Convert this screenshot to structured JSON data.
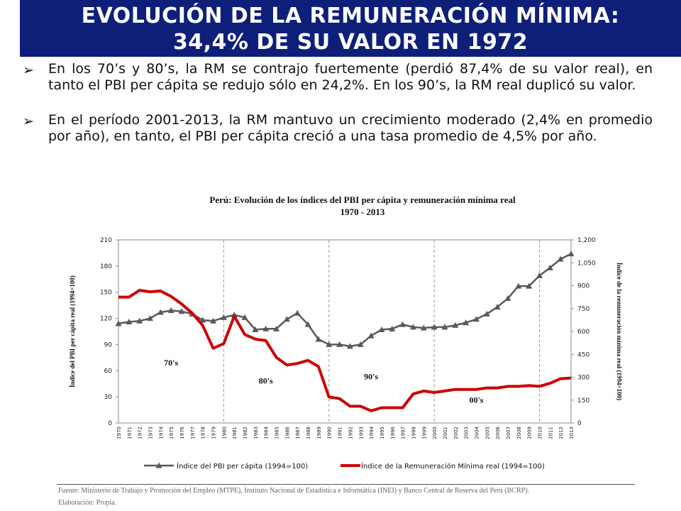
{
  "header": {
    "title_line1": "EVOLUCIÓN DE LA REMUNERACIÓN MÍNIMA:",
    "title_line2": "34,4% DE SU VALOR EN 1972",
    "background": "#0e1f7a"
  },
  "bullets": [
    {
      "icon": "arrow-bullet-icon",
      "text": "En los 70’s y 80’s, la RM se contrajo fuertemente (perdió 87,4% de su valor real), en tanto el PBI per cápita se redujo sólo en 24,2%. En los 90’s, la RM real duplicó su valor."
    },
    {
      "icon": "arrow-bullet-icon",
      "text": "En el período 2001-2013, la RM mantuvo un crecimiento moderado (2,4% en promedio por año), en tanto, el PBI per cápita creció a una tasa promedio de 4,5% por año."
    }
  ],
  "chart_data": {
    "type": "line",
    "title": "Perú: Evolución de los índices del PBI per cápita y remuneración mínima real",
    "subtitle": "1970 - 2013",
    "ylabel": "Índice del PBI per cápita real (1994=100)",
    "y2label": "Índice de la remuneración mínima real (1994=100)",
    "ylim": [
      0,
      210
    ],
    "y_ticks": [
      0,
      30,
      60,
      90,
      120,
      150,
      180,
      210
    ],
    "y2lim": [
      0,
      1200
    ],
    "y2_ticks": [
      "0",
      "150",
      "300",
      "450",
      "600",
      "750",
      "900",
      "1,050",
      "1,200"
    ],
    "x": [
      "1970",
      "1971",
      "1972",
      "1973",
      "1974",
      "1975",
      "1976",
      "1977",
      "1978",
      "1979",
      "1980",
      "1981",
      "1982",
      "1983",
      "1984",
      "1985",
      "1986",
      "1987",
      "1988",
      "1989",
      "1990",
      "1991",
      "1992",
      "1993",
      "1994",
      "1995",
      "1996",
      "1997",
      "1998",
      "1999",
      "2000",
      "2001",
      "2002",
      "2003",
      "2004",
      "2005",
      "2006",
      "2007",
      "2008",
      "2009",
      "2010",
      "2011",
      "2012",
      "2013"
    ],
    "decade_lines": [
      "1980",
      "1990",
      "2000",
      "2010"
    ],
    "decade_labels": [
      {
        "text": "70's",
        "at": "1975",
        "y": 66
      },
      {
        "text": "80's",
        "at": "1984",
        "y": 45
      },
      {
        "text": "90's",
        "at": "1994",
        "y": 50
      },
      {
        "text": "00's",
        "at": "2004",
        "y": 23
      }
    ],
    "series": [
      {
        "name": "Índice del PBI per cápita real (1994=100)",
        "axis": "left",
        "color": "#595959",
        "marker": "triangle",
        "values": [
          114,
          116,
          117,
          120,
          127,
          129,
          128,
          125,
          118,
          117,
          121,
          124,
          121,
          107,
          108,
          108,
          119,
          126,
          113,
          96,
          90,
          90,
          88,
          90,
          100,
          107,
          108,
          113,
          110,
          109,
          110,
          110,
          112,
          115,
          119,
          125,
          133,
          143,
          157,
          157,
          169,
          178,
          188,
          194
        ]
      },
      {
        "name": "Índice de la Remuneración Mínima real (1994=100)",
        "axis": "right",
        "color": "#cc0000",
        "marker": "none",
        "values": [
          825,
          825,
          870,
          860,
          865,
          830,
          780,
          720,
          640,
          490,
          520,
          700,
          580,
          550,
          540,
          430,
          380,
          390,
          410,
          370,
          170,
          160,
          110,
          110,
          80,
          100,
          100,
          100,
          190,
          210,
          200,
          210,
          220,
          220,
          220,
          230,
          230,
          240,
          240,
          245,
          240,
          260,
          290,
          295
        ]
      }
    ],
    "legend": "bottom",
    "grid": false
  },
  "footer": {
    "source": "Fuente: Ministerio de Trabajo y Promoción del Empleo (MTPE), Instituto Nacional de Estadística e Informática (INEI) y Banco Central de Reserva del Perú (BCRP).",
    "elaboration": "Elaboración: Propia."
  }
}
